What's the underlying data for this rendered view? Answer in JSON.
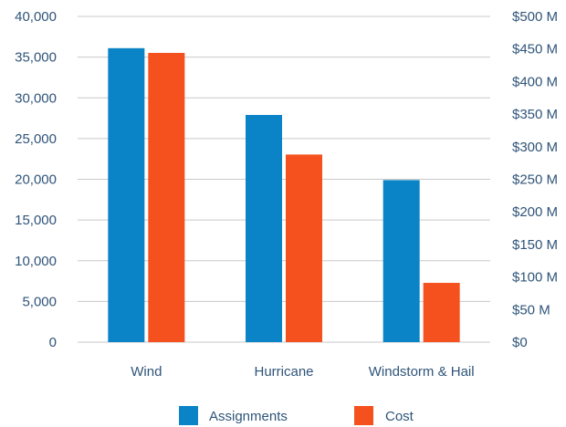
{
  "chart_data": {
    "type": "bar",
    "categories": [
      "Wind",
      "Hurricane",
      "Windstorm & Hail"
    ],
    "series": [
      {
        "name": "Assignments",
        "axis": "left",
        "color": "#0a84c6",
        "values": [
          36100,
          27900,
          19900
        ]
      },
      {
        "name": "Cost",
        "axis": "right",
        "color": "#f4511e",
        "values": [
          444000000,
          288000000,
          91000000
        ]
      }
    ],
    "y_left": {
      "range": [
        0,
        40000
      ],
      "ticks": [
        0,
        5000,
        10000,
        15000,
        20000,
        25000,
        30000,
        35000,
        40000
      ],
      "tick_labels": [
        "0",
        "5,000",
        "10,000",
        "15,000",
        "20,000",
        "25,000",
        "30,000",
        "35,000",
        "40,000"
      ]
    },
    "y_right": {
      "range": [
        0,
        500000000
      ],
      "tick_labels": [
        "$0",
        "$50 M",
        "$100 M",
        "$150 M",
        "$200 M",
        "$250 M",
        "$300 M",
        "$350 M",
        "$400 M",
        "$450 M",
        "$500 M"
      ]
    },
    "grid": true,
    "legend": "bottom"
  }
}
